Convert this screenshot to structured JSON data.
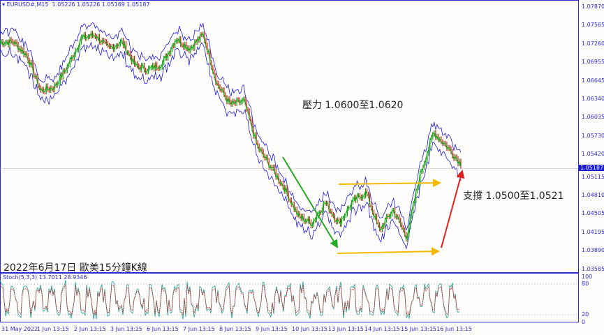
{
  "header": {
    "symbol": "EURUSD#,M15",
    "ohlc": "1.05226 1.05226 1.05169 1.05187"
  },
  "price_axis": [
    "1.07870",
    "1.07565",
    "1.07260",
    "1.06955",
    "1.06645",
    "1.06340",
    "1.06035",
    "1.05730",
    "1.05420",
    "1.05115",
    "1.04810",
    "1.04505",
    "1.04195",
    "1.03890",
    "1.03585"
  ],
  "current_price": "1.05187",
  "stoch": {
    "label": "Stoch(5,3,3) 13.7011 28.9346",
    "levels": [
      "100",
      "80",
      "20",
      "0"
    ]
  },
  "time_axis": [
    "31 May 2022",
    "1 Jun 13:15",
    "2 Jun 13:15",
    "3 Jun 13:15",
    "6 Jun 13:15",
    "7 Jun 13:15",
    "8 Jun 13:15",
    "9 Jun 13:15",
    "10 Jun 13:15",
    "13 Jun 13:15",
    "14 Jun 13:15",
    "15 Jun 13:15",
    "16 Jun 13:15"
  ],
  "annotations": {
    "resistance": "壓力 1.0600至1.0620",
    "support": "支撐 1.0500至1.0521",
    "caption": "2022年6月17日 歐美15分鐘K線"
  },
  "colors": {
    "axis": "#2a2ad0",
    "band": "#1a1ae0",
    "price": "#12b012",
    "down_arrow": "#22aa22",
    "level_arrow": "#f5b800",
    "up_arrow": "#e02020"
  },
  "price_path": [
    1.0729,
    1.0729,
    1.0706,
    1.0648,
    1.0654,
    1.0689,
    1.0735,
    1.0741,
    1.0718,
    1.0729,
    1.0689,
    1.0683,
    1.0694,
    1.0735,
    1.0718,
    1.0741,
    1.066,
    1.0625,
    1.0631,
    1.0555,
    1.0521,
    1.0486,
    1.044,
    1.0428,
    1.0463,
    1.0428,
    1.0463,
    1.048,
    1.0416,
    1.0451,
    1.0405,
    1.0509,
    1.0579,
    1.0555,
    1.0527
  ]
}
